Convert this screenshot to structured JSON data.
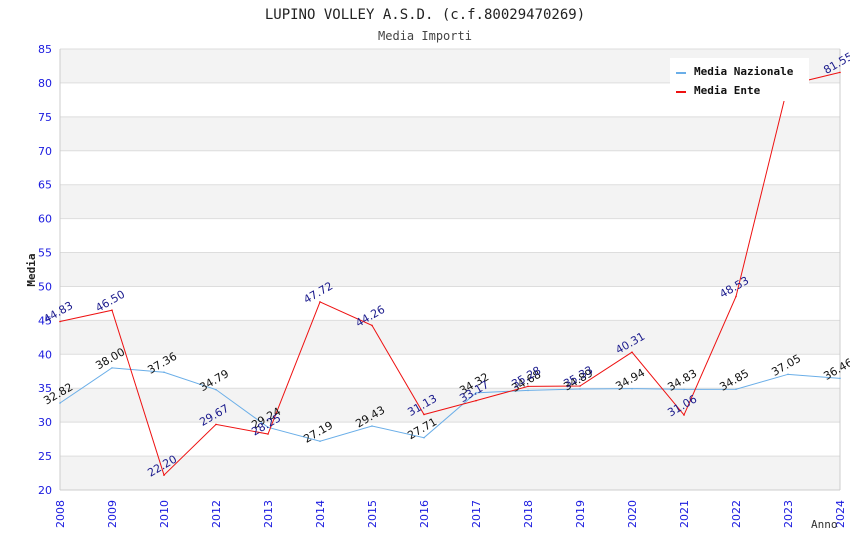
{
  "chart_data": {
    "type": "line",
    "title": "LUPINO VOLLEY A.S.D. (c.f.80029470269)",
    "subtitle": "Media Importi",
    "xlabel": "Anno",
    "ylabel": "Media",
    "ylim": [
      20,
      85
    ],
    "yticks": [
      20,
      25,
      30,
      35,
      40,
      45,
      50,
      55,
      60,
      65,
      70,
      75,
      80,
      85
    ],
    "grid": true,
    "legend_position": "top-right",
    "categories": [
      "2008",
      "2009",
      "2010",
      "2012",
      "2013",
      "2014",
      "2015",
      "2016",
      "2017",
      "2018",
      "2019",
      "2020",
      "2021",
      "2022",
      "2023",
      "2024"
    ],
    "series": [
      {
        "name": "Media Nazionale",
        "color": "#6aaee8",
        "values": [
          32.82,
          38.0,
          37.36,
          34.79,
          29.24,
          27.19,
          29.43,
          27.71,
          34.32,
          34.68,
          34.89,
          34.94,
          34.83,
          34.85,
          37.05,
          36.46
        ],
        "labels": [
          "32.82",
          "38.00",
          "37.36",
          "34.79",
          "29.24",
          "27.19",
          "29.43",
          "27.71",
          "34.32",
          "34.68",
          "34.89",
          "34.94",
          "34.83",
          "34.85",
          "37.05",
          "36.46"
        ]
      },
      {
        "name": "Media Ente",
        "color": "#ee1111",
        "values": [
          44.83,
          46.5,
          22.2,
          29.67,
          28.25,
          47.72,
          44.26,
          31.13,
          33.17,
          35.28,
          35.33,
          40.31,
          31.06,
          48.53,
          79.7,
          81.55
        ],
        "labels": [
          "44.83",
          "46.50",
          "22.20",
          "29.67",
          "28.25",
          "47.72",
          "44.26",
          "31.13",
          "33.17",
          "35.28",
          "35.33",
          "40.31",
          "31.06",
          "48.53",
          "",
          "81.55"
        ]
      }
    ]
  }
}
